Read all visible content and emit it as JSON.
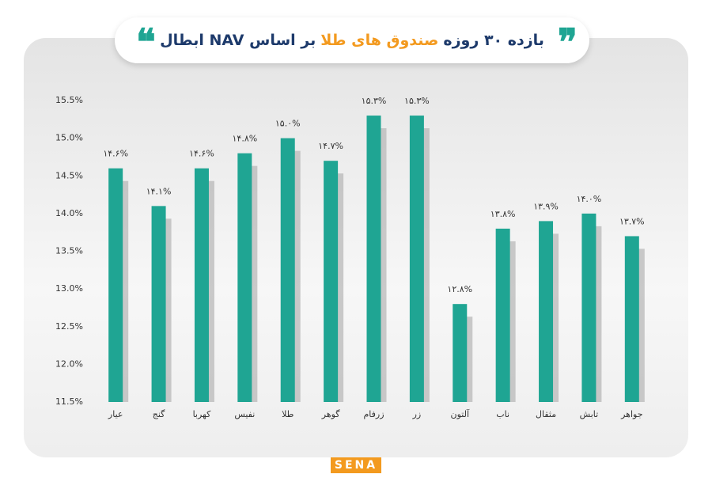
{
  "chart_data": {
    "type": "bar",
    "title": [
      "بازده ۳۰ روزه",
      "صندوق های طلا",
      "بر اساس NAV ابطال"
    ],
    "categories": [
      "عیار",
      "گنج",
      "کهربا",
      "نفیس",
      "طلا",
      "گوهر",
      "زرفام",
      "زر",
      "آلتون",
      "ناب",
      "مثقال",
      "تابش",
      "جواهر"
    ],
    "values": [
      14.6,
      14.1,
      14.6,
      14.8,
      15.0,
      14.7,
      15.3,
      15.3,
      12.8,
      13.8,
      13.9,
      14.0,
      13.7
    ],
    "value_labels": [
      "۱۴.۶%",
      "۱۴.۱%",
      "۱۴.۶%",
      "۱۴.۸%",
      "۱۵.۰%",
      "۱۴.۷%",
      "۱۵.۳%",
      "۱۵.۳%",
      "۱۲.۸%",
      "۱۳.۸%",
      "۱۳.۹%",
      "۱۴.۰%",
      "۱۳.۷%"
    ],
    "color": "#1fa593",
    "ylim": [
      11.5,
      15.5
    ],
    "yticks": [
      {
        "value": 11.5,
        "label": "11.5%"
      },
      {
        "value": 12.0,
        "label": "12.0%"
      },
      {
        "value": 12.5,
        "label": "12.5%"
      },
      {
        "value": 13.0,
        "label": "13.0%"
      },
      {
        "value": 13.5,
        "label": "13.5%"
      },
      {
        "value": 14.0,
        "label": "14.0%"
      },
      {
        "value": 14.5,
        "label": "14.5%"
      },
      {
        "value": 15.0,
        "label": "15.0%"
      },
      {
        "value": 15.5,
        "label": "15.5%"
      }
    ],
    "grid": false,
    "logo": "SENA"
  }
}
